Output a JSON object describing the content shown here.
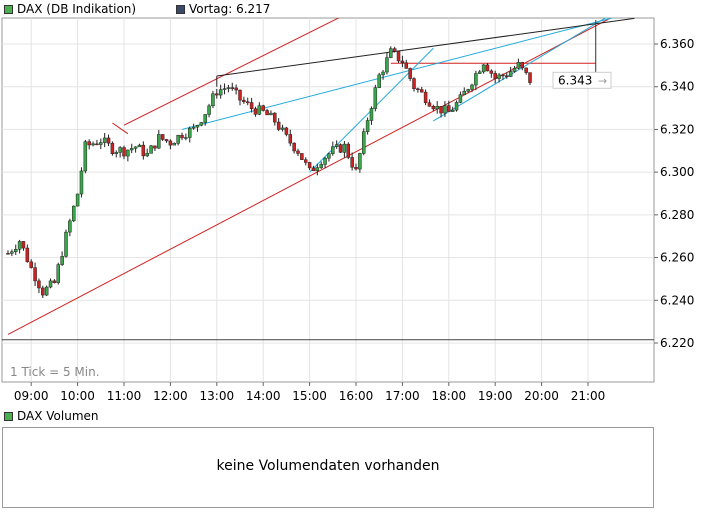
{
  "legend": {
    "main_label": "DAX (DB Indikation)",
    "main_color": "#4caf50",
    "prev_label": "Vortag: 6.217",
    "prev_color": "#3a4a6a"
  },
  "tick_note": "1 Tick = 5 Min.",
  "current_price_label": "6.343",
  "volume": {
    "legend_label": "DAX Volumen",
    "legend_color": "#4caf50",
    "message": "keine Volumendaten vorhanden"
  },
  "colors": {
    "up": "#3aa64a",
    "down": "#cc2222",
    "channel": "#d42020",
    "trend_blue": "#22aadd",
    "trend_black": "#222222",
    "grid": "#e4e4e4"
  },
  "chart_data": {
    "type": "candlestick",
    "y_axis": {
      "min": 6210,
      "max": 6375,
      "ticks": [
        6220,
        6240,
        6260,
        6280,
        6300,
        6320,
        6340,
        6360
      ],
      "tick_labels": [
        "6.220",
        "6.240",
        "6.260",
        "6.280",
        "6.300",
        "6.320",
        "6.340",
        "6.360"
      ]
    },
    "x_axis": {
      "start": "08:30",
      "end": "22:00",
      "tick_labels": [
        "09:00",
        "10:00",
        "11:00",
        "12:00",
        "13:00",
        "14:00",
        "15:00",
        "16:00",
        "17:00",
        "18:00",
        "19:00",
        "20:00",
        "21:00"
      ]
    },
    "close_path": [
      [
        "08:30",
        6262
      ],
      [
        "08:45",
        6268
      ],
      [
        "09:00",
        6255
      ],
      [
        "09:15",
        6244
      ],
      [
        "09:30",
        6248
      ],
      [
        "09:45",
        6270
      ],
      [
        "10:00",
        6290
      ],
      [
        "10:10",
        6312
      ],
      [
        "10:30",
        6315
      ],
      [
        "10:45",
        6311
      ],
      [
        "11:00",
        6310
      ],
      [
        "11:15",
        6312
      ],
      [
        "11:30",
        6308
      ],
      [
        "11:45",
        6316
      ],
      [
        "12:00",
        6314
      ],
      [
        "12:15",
        6318
      ],
      [
        "12:30",
        6320
      ],
      [
        "12:45",
        6328
      ],
      [
        "13:00",
        6338
      ],
      [
        "13:15",
        6340
      ],
      [
        "13:30",
        6334
      ],
      [
        "13:45",
        6330
      ],
      [
        "14:00",
        6328
      ],
      [
        "14:15",
        6324
      ],
      [
        "14:30",
        6316
      ],
      [
        "14:45",
        6310
      ],
      [
        "15:00",
        6300
      ],
      [
        "15:15",
        6306
      ],
      [
        "15:30",
        6310
      ],
      [
        "15:45",
        6312
      ],
      [
        "16:00",
        6300
      ],
      [
        "16:15",
        6325
      ],
      [
        "16:30",
        6345
      ],
      [
        "16:45",
        6356
      ],
      [
        "17:00",
        6352
      ],
      [
        "17:15",
        6340
      ],
      [
        "17:30",
        6335
      ],
      [
        "17:45",
        6330
      ],
      [
        "18:00",
        6328
      ],
      [
        "18:15",
        6334
      ],
      [
        "18:30",
        6343
      ],
      [
        "18:45",
        6352
      ],
      [
        "19:00",
        6344
      ],
      [
        "19:15",
        6346
      ],
      [
        "19:30",
        6350
      ],
      [
        "19:45",
        6343
      ]
    ],
    "channel_lines": [
      {
        "from": [
          "08:30",
          6224
        ],
        "to": [
          "22:00",
          6378
        ]
      },
      {
        "from": [
          "11:00",
          6322
        ],
        "to": [
          "18:00",
          6398
        ]
      },
      {
        "from": [
          "10:45",
          6323
        ],
        "to": [
          "11:05",
          6318
        ]
      },
      {
        "from": [
          "16:45",
          6351
        ],
        "to": [
          "21:10",
          6351
        ]
      }
    ],
    "trend_lines_blue": [
      {
        "from": [
          "12:15",
          6320
        ],
        "to": [
          "21:40",
          6373
        ]
      },
      {
        "from": [
          "15:00",
          6300
        ],
        "to": [
          "17:40",
          6358
        ]
      },
      {
        "from": [
          "17:40",
          6324
        ],
        "to": [
          "21:40",
          6376
        ]
      }
    ],
    "trend_lines_black": [
      {
        "from": [
          "13:00",
          6345
        ],
        "to": [
          "22:00",
          6372
        ]
      },
      {
        "from": [
          "13:00",
          6340
        ],
        "to": [
          "13:00",
          6345
        ]
      }
    ],
    "cursor_time": "21:10",
    "current_price": 6343,
    "reference_line": 6217
  }
}
